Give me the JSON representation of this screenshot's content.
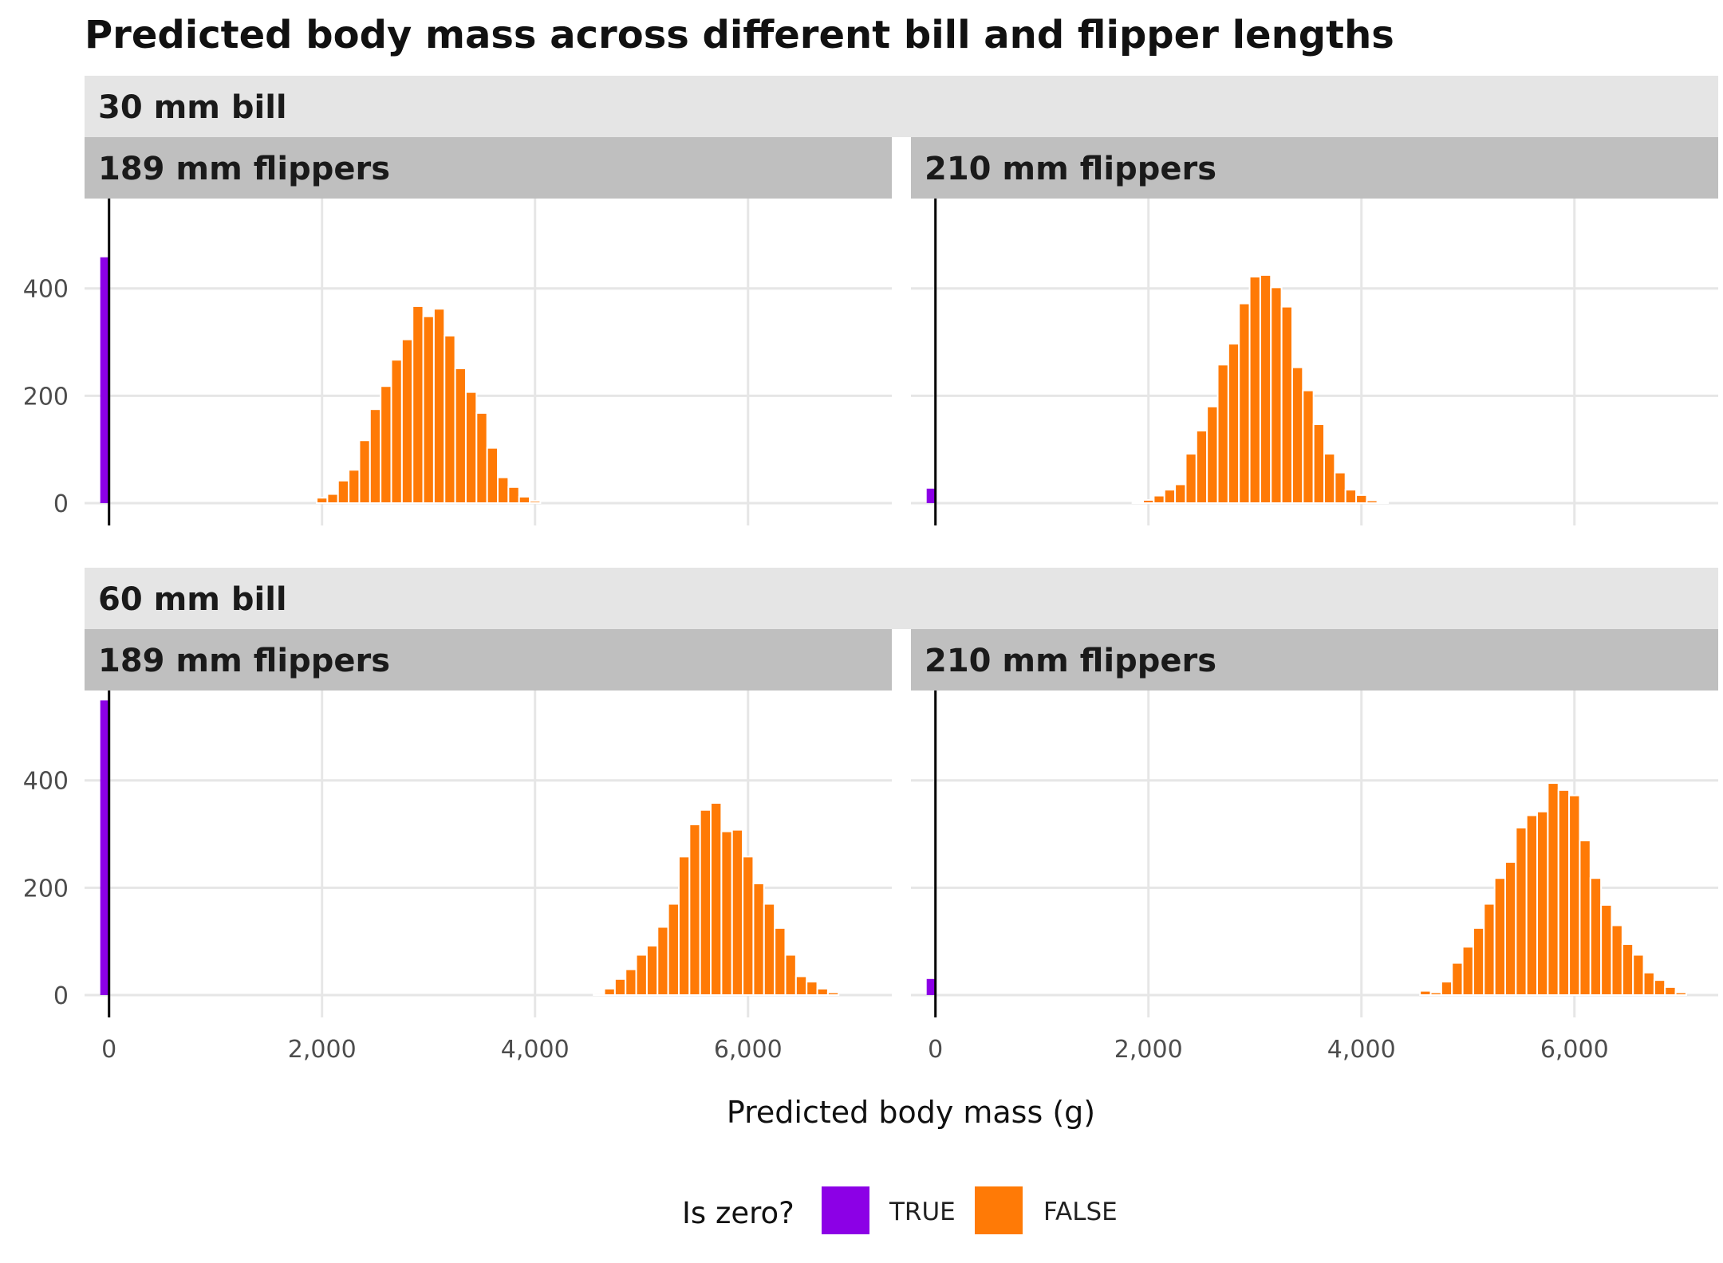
{
  "chart_data": {
    "type": "bar",
    "title": "Predicted body mass across different bill and flipper lengths",
    "xlabel": "Predicted body mass (g)",
    "ylabel": "",
    "xlim": [
      -230,
      7350
    ],
    "ylim": [
      0,
      560
    ],
    "x_ticks": [
      0,
      2000,
      4000,
      6000
    ],
    "x_tick_labels": [
      "0",
      "2,000",
      "4,000",
      "6,000"
    ],
    "y_ticks": [
      0,
      200,
      400
    ],
    "y_tick_labels": [
      "0",
      "200",
      "400"
    ],
    "bin_width": 100,
    "grid": true,
    "zero_line": true,
    "legend": {
      "title": "Is zero?",
      "position": "bottom",
      "entries": [
        {
          "label": "TRUE",
          "color": "#8c00e6"
        },
        {
          "label": "FALSE",
          "color": "#ff7a06"
        }
      ]
    },
    "rows": [
      {
        "label": "30 mm bill",
        "panels": [
          {
            "label": "189 mm flippers",
            "zero_count": 458,
            "bins_start": 1950,
            "counts": [
              10,
              17,
              42,
              62,
              117,
              175,
              218,
              267,
              305,
              367,
              348,
              362,
              312,
              251,
              207,
              168,
              103,
              48,
              30,
              12,
              4
            ]
          },
          {
            "label": "210 mm flippers",
            "zero_count": 27,
            "bins_start": 1850,
            "counts": [
              2,
              6,
              14,
              25,
              35,
              92,
              135,
              180,
              258,
              297,
              372,
              422,
              425,
              402,
              366,
              253,
              210,
              147,
              92,
              57,
              25,
              15,
              5,
              2
            ]
          }
        ]
      },
      {
        "label": "60 mm bill",
        "panels": [
          {
            "label": "189 mm flippers",
            "zero_count": 549,
            "bins_start": 4550,
            "counts": [
              3,
              12,
              30,
              48,
              75,
              92,
              127,
              170,
              258,
              318,
              345,
              358,
              305,
              308,
              258,
              208,
              170,
              125,
              75,
              35,
              25,
              12,
              5
            ]
          },
          {
            "label": "210 mm flippers",
            "zero_count": 30,
            "bins_start": 4550,
            "counts": [
              8,
              5,
              25,
              60,
              90,
              125,
              170,
              218,
              248,
              312,
              335,
              342,
              395,
              382,
              372,
              288,
              218,
              168,
              130,
              95,
              75,
              42,
              28,
              15,
              5
            ]
          }
        ]
      }
    ]
  }
}
